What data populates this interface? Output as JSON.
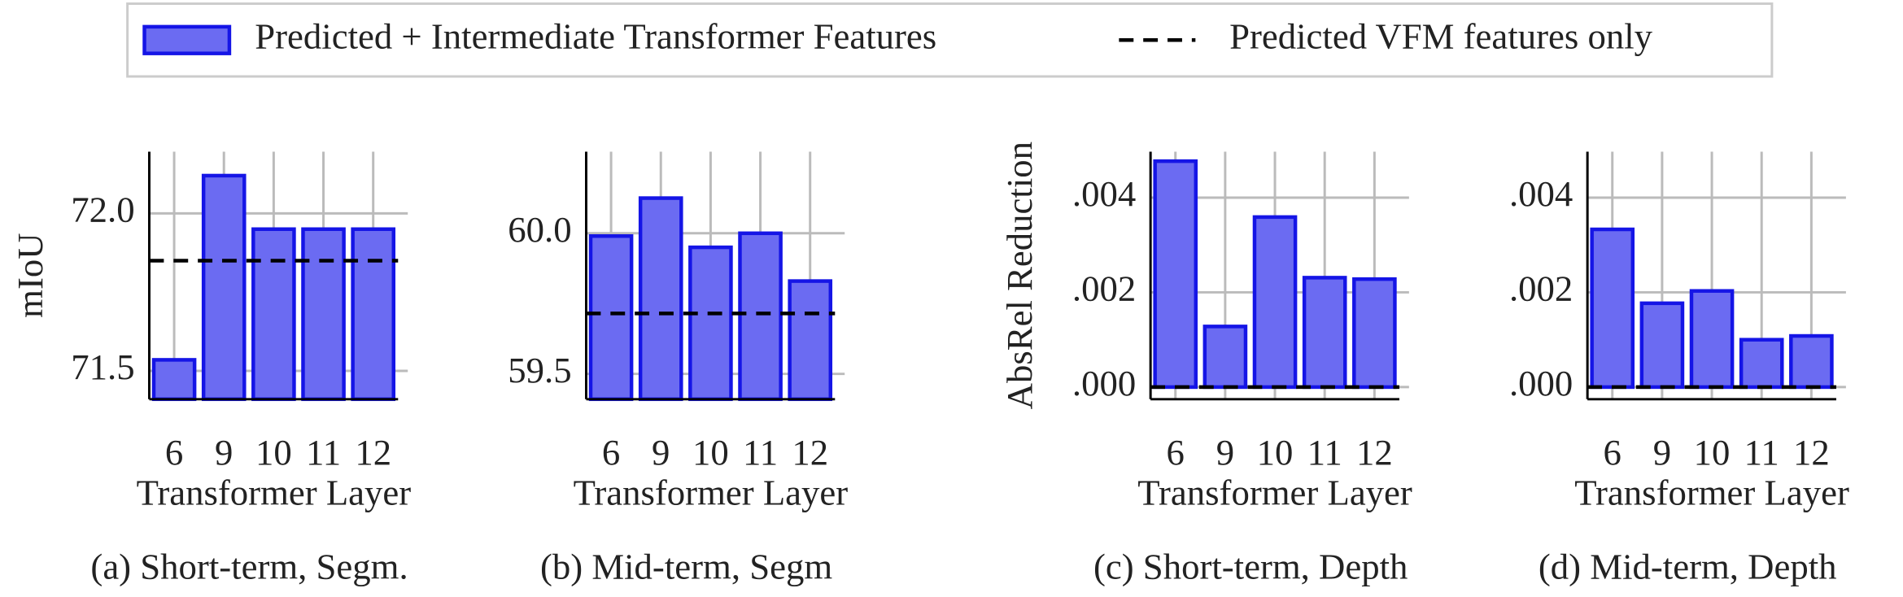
{
  "legend": {
    "entries": [
      {
        "label": "Predicted + Intermediate Transformer Features",
        "color": "#6b6bf2",
        "edgecolor": "#1515e6",
        "style": "bar"
      },
      {
        "label": "Predicted VFM features only",
        "color": "#000000",
        "style": "dashed"
      }
    ]
  },
  "chart_data": [
    {
      "type": "bar",
      "title": "(a) Short-term, Segm.",
      "x_label": "Transformer Layer",
      "y_label": "mIoU",
      "categories": [
        "6",
        "9",
        "10",
        "11",
        "12"
      ],
      "values": [
        71.535,
        72.12,
        71.95,
        71.95,
        71.95
      ],
      "baseline": 71.85,
      "ylim": [
        71.41,
        72.196
      ],
      "yticks": [
        71.5,
        {
          "value": 72,
          "label": "72.0"
        }
      ],
      "grid": true
    },
    {
      "type": "bar",
      "title": "(b) Mid-term, Segm",
      "x_label": "Transformer Layer",
      "categories": [
        "6",
        "9",
        "10",
        "11",
        "12"
      ],
      "values": [
        59.99,
        60.125,
        59.95,
        60.0,
        59.83
      ],
      "baseline": 59.715,
      "ylim": [
        59.41,
        60.29
      ],
      "yticks": [
        59.5,
        {
          "value": 60,
          "label": "60.0"
        }
      ],
      "grid": true
    },
    {
      "type": "bar",
      "title": "(c) Short-term, Depth",
      "x_label": "Transformer Layer",
      "y_label": "AbsRel Reduction",
      "categories": [
        "6",
        "9",
        "10",
        "11",
        "12"
      ],
      "values": [
        0.00477,
        0.00128,
        0.00359,
        0.00231,
        0.00228
      ],
      "baseline": 0,
      "ylim": [
        -0.000256,
        0.00497
      ],
      "yticks": [
        {
          "value": 0,
          "label": ".000"
        },
        {
          "value": 0.002,
          "label": ".002"
        },
        {
          "value": 0.004,
          "label": ".004"
        }
      ],
      "grid": true
    },
    {
      "type": "bar",
      "title": "(d) Mid-term, Depth",
      "x_label": "Transformer Layer",
      "categories": [
        "6",
        "9",
        "10",
        "11",
        "12"
      ],
      "values": [
        0.00333,
        0.00177,
        0.00203,
        0.001,
        0.00108
      ],
      "baseline": 0,
      "ylim": [
        -0.000256,
        0.00497
      ],
      "yticks": [
        {
          "value": 0,
          "label": ".000"
        },
        {
          "value": 0.002,
          "label": ".002"
        },
        {
          "value": 0.004,
          "label": ".004"
        }
      ],
      "grid": true
    }
  ]
}
